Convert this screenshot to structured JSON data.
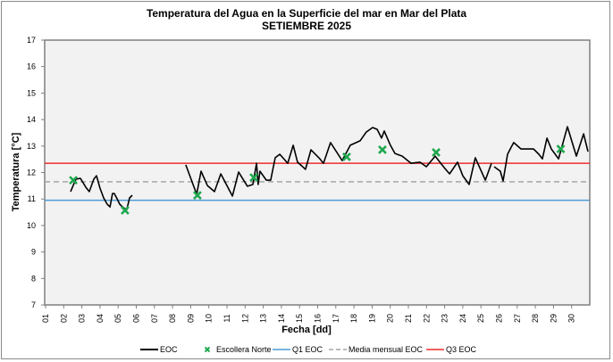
{
  "chart_data": {
    "type": "line",
    "title": "Temperatura del Agua en la Superficie del mar en Mar del Plata",
    "subtitle": "SETIEMBRE 2025",
    "xlabel": "Fecha [dd]",
    "ylabel": "Temperatura [°C]",
    "xlim": [
      1,
      31
    ],
    "ylim": [
      7,
      17
    ],
    "yticks": [
      "7",
      "8",
      "9",
      "10",
      "11",
      "12",
      "13",
      "14",
      "15",
      "16",
      "17"
    ],
    "xticks": [
      "01",
      "02",
      "03",
      "04",
      "05",
      "06",
      "07",
      "08",
      "09",
      "10",
      "11",
      "12",
      "13",
      "14",
      "15",
      "16",
      "17",
      "18",
      "19",
      "20",
      "21",
      "22",
      "23",
      "24",
      "25",
      "26",
      "27",
      "28",
      "29",
      "30"
    ],
    "grid": false,
    "legend_position": "bottom",
    "legend": [
      "EOC",
      "Escollera Norte",
      "Q1 EOC",
      "Media mensual EOC",
      "Q3  EOC"
    ],
    "colors": {
      "eoc": "#000000",
      "escollera": "#1fa84f",
      "q1": "#4f9bd6",
      "media": "#a6a6a6",
      "q3": "#ee2c2c",
      "plot_bg": "#f2f2f2"
    },
    "series": [
      {
        "name": "EOC",
        "type": "line",
        "segments": [
          [
            [
              2.38,
              11.28
            ],
            [
              2.67,
              11.75
            ],
            [
              2.92,
              11.78
            ],
            [
              3.22,
              11.44
            ],
            [
              3.41,
              11.28
            ],
            [
              3.66,
              11.75
            ],
            [
              3.81,
              11.88
            ],
            [
              4.0,
              11.41
            ],
            [
              4.2,
              11.04
            ],
            [
              4.4,
              10.8
            ],
            [
              4.55,
              10.7
            ],
            [
              4.69,
              11.21
            ],
            [
              4.79,
              11.21
            ],
            [
              4.94,
              11.01
            ],
            [
              5.09,
              10.8
            ],
            [
              5.29,
              10.67
            ],
            [
              5.48,
              10.6
            ],
            [
              5.63,
              11.04
            ],
            [
              5.78,
              11.14
            ]
          ],
          [
            [
              8.73,
              12.29
            ],
            [
              9.33,
              11.18
            ],
            [
              9.57,
              12.05
            ],
            [
              9.92,
              11.51
            ],
            [
              10.31,
              11.28
            ],
            [
              10.66,
              11.95
            ],
            [
              11.3,
              11.11
            ],
            [
              11.64,
              12.02
            ],
            [
              12.13,
              11.48
            ],
            [
              12.43,
              11.55
            ],
            [
              12.63,
              12.35
            ],
            [
              12.72,
              11.55
            ],
            [
              12.82,
              12.05
            ],
            [
              13.17,
              11.71
            ],
            [
              13.41,
              11.71
            ],
            [
              13.66,
              12.56
            ],
            [
              13.91,
              12.69
            ],
            [
              14.35,
              12.35
            ],
            [
              14.65,
              13.03
            ],
            [
              14.89,
              12.39
            ],
            [
              15.33,
              12.12
            ],
            [
              15.63,
              12.86
            ],
            [
              16.12,
              12.52
            ],
            [
              16.32,
              12.35
            ],
            [
              16.71,
              13.13
            ],
            [
              17.35,
              12.45
            ],
            [
              17.8,
              13.03
            ],
            [
              18.34,
              13.2
            ],
            [
              18.68,
              13.53
            ],
            [
              19.03,
              13.7
            ],
            [
              19.28,
              13.63
            ],
            [
              19.52,
              13.3
            ],
            [
              19.67,
              13.57
            ],
            [
              20.01,
              13.03
            ],
            [
              20.26,
              12.72
            ],
            [
              20.66,
              12.62
            ],
            [
              21.15,
              12.35
            ],
            [
              21.64,
              12.39
            ],
            [
              21.99,
              12.22
            ],
            [
              22.48,
              12.62
            ],
            [
              22.97,
              12.19
            ],
            [
              23.27,
              11.95
            ],
            [
              23.71,
              12.39
            ],
            [
              24.0,
              11.88
            ],
            [
              24.35,
              11.55
            ],
            [
              24.69,
              12.56
            ],
            [
              25.24,
              11.71
            ],
            [
              25.58,
              12.35
            ]
          ],
          [
            [
              25.73,
              12.22
            ],
            [
              26.07,
              12.05
            ],
            [
              26.22,
              11.68
            ],
            [
              26.47,
              12.69
            ],
            [
              26.67,
              12.96
            ],
            [
              26.81,
              13.13
            ],
            [
              27.21,
              12.89
            ],
            [
              27.9,
              12.89
            ],
            [
              28.19,
              12.69
            ],
            [
              28.39,
              12.52
            ],
            [
              28.64,
              13.3
            ],
            [
              28.88,
              12.89
            ],
            [
              29.28,
              12.52
            ],
            [
              29.77,
              13.73
            ],
            [
              30.26,
              12.62
            ],
            [
              30.66,
              13.46
            ],
            [
              30.9,
              12.79
            ]
          ]
        ]
      },
      {
        "name": "Escollera Norte",
        "type": "scatter",
        "points": [
          [
            2.53,
            11.71
          ],
          [
            5.38,
            10.57
          ],
          [
            9.37,
            11.14
          ],
          [
            12.48,
            11.81
          ],
          [
            17.6,
            12.59
          ],
          [
            19.57,
            12.86
          ],
          [
            22.53,
            12.76
          ],
          [
            29.4,
            12.89
          ]
        ]
      },
      {
        "name": "Q1 EOC",
        "type": "hline",
        "value": 10.95
      },
      {
        "name": "Media mensual EOC",
        "type": "hline",
        "value": 11.65
      },
      {
        "name": "Q3  EOC",
        "type": "hline",
        "value": 12.35
      }
    ]
  }
}
